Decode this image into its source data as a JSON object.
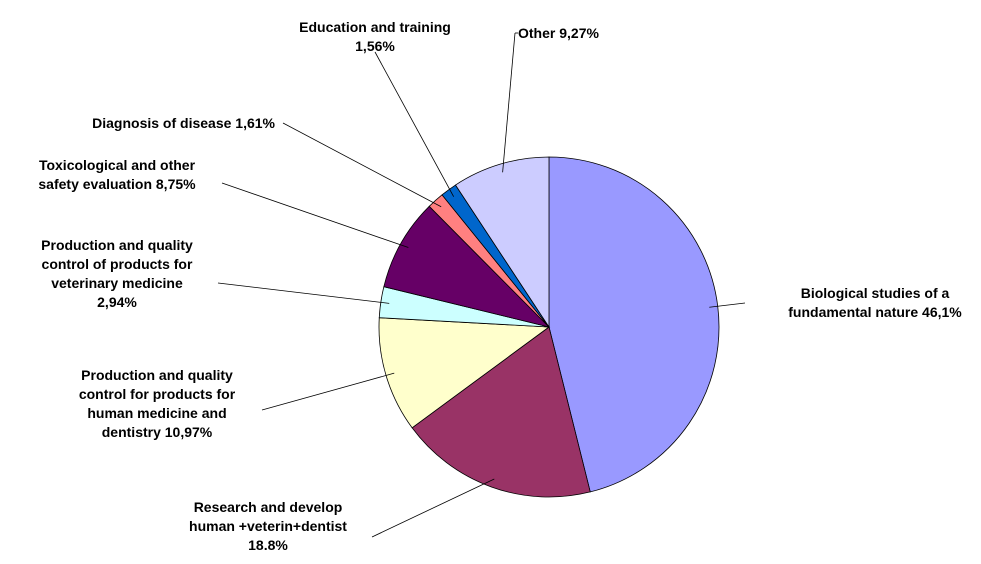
{
  "chart_data": {
    "type": "pie",
    "categories": [
      "Biological studies of a\nfundamental nature",
      "Research and develop\nhuman +veterin+dentist",
      "Production and quality\ncontrol for products for\nhuman medicine and\ndentistry",
      "Production and quality\ncontrol  of products for\nveterinary medicine",
      "Toxicological  and other\nsafety evaluation",
      "Diagnosis of disease",
      "Education and training",
      "Other"
    ],
    "values": [
      46.1,
      18.8,
      10.97,
      2.94,
      8.75,
      1.61,
      1.56,
      9.27
    ],
    "value_labels": [
      "46,1%",
      "18.8%",
      "10,97%",
      "2,94%",
      "8,75%",
      "1,61%",
      "1,56%",
      "9,27%"
    ],
    "colors": [
      "#9999ff",
      "#993366",
      "#ffffcc",
      "#ccffff",
      "#660066",
      "#ff8080",
      "#0066cc",
      "#ccccff"
    ]
  }
}
